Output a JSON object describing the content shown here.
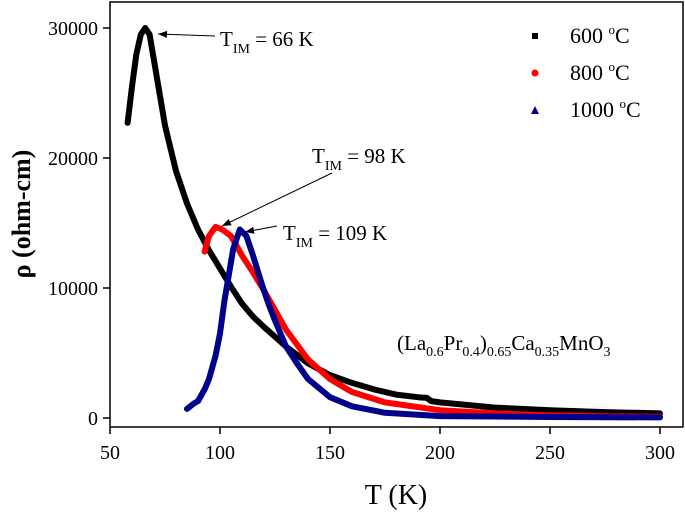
{
  "chart_data": {
    "type": "scatter",
    "title": "",
    "xlabel": "T (K)",
    "ylabel": "ρ (ohm-cm)",
    "xlim": [
      50,
      302
    ],
    "ylim": [
      -800,
      32500
    ],
    "xticks": [
      50,
      100,
      150,
      200,
      250,
      300
    ],
    "yticks": [
      0,
      10000,
      20000,
      30000
    ],
    "grid": false,
    "legend_position": "top-right",
    "compound_label": {
      "parts": [
        {
          "t": "(La",
          "sub": false
        },
        {
          "t": "0.6",
          "sub": true
        },
        {
          "t": "Pr",
          "sub": false
        },
        {
          "t": "0.4",
          "sub": true
        },
        {
          "t": ")",
          "sub": false
        },
        {
          "t": "0.65",
          "sub": true
        },
        {
          "t": "Ca",
          "sub": false
        },
        {
          "t": "0.35",
          "sub": true
        },
        {
          "t": "MnO",
          "sub": false
        },
        {
          "t": "3",
          "sub": true
        }
      ]
    },
    "annotations": [
      {
        "main": "T",
        "sub": "IM",
        "rest": " = 66 K",
        "x": 66,
        "y": 30000
      },
      {
        "main": "T",
        "sub": "IM",
        "rest": " = 98 K",
        "x": 98,
        "y": 14700
      },
      {
        "main": "T",
        "sub": "IM",
        "rest": " = 109 K",
        "x": 109,
        "y": 14500
      }
    ],
    "series": [
      {
        "name": "600 °C",
        "legend_main": "600 ",
        "legend_sup": "o",
        "legend_unit": "C",
        "color": "#000000",
        "marker": "square",
        "x": [
          58,
          60,
          62,
          64,
          66,
          68,
          70,
          75,
          80,
          85,
          90,
          95,
          100,
          105,
          110,
          115,
          120,
          130,
          140,
          150,
          160,
          170,
          180,
          190,
          194,
          196,
          200,
          225,
          250,
          275,
          300
        ],
        "y": [
          22700,
          25500,
          28000,
          29500,
          30000,
          29500,
          27500,
          22500,
          19000,
          16500,
          14500,
          12900,
          11500,
          10100,
          8800,
          7800,
          7000,
          5500,
          4200,
          3300,
          2700,
          2200,
          1800,
          1600,
          1550,
          1300,
          1200,
          800,
          600,
          450,
          350
        ]
      },
      {
        "name": "800 °C",
        "legend_main": "800 ",
        "legend_sup": "o",
        "legend_unit": "C",
        "color": "#ff0000",
        "marker": "circle",
        "x": [
          93,
          95,
          98,
          101,
          105,
          110,
          115,
          120,
          125,
          130,
          140,
          150,
          160,
          175,
          200,
          225,
          250,
          275,
          300
        ],
        "y": [
          12800,
          14000,
          14700,
          14500,
          14000,
          12500,
          11200,
          9800,
          8300,
          6800,
          4500,
          3000,
          2000,
          1200,
          600,
          350,
          200,
          130,
          100
        ]
      },
      {
        "name": "1000 °C",
        "legend_main": "1000 ",
        "legend_sup": "o",
        "legend_unit": "C",
        "color": "#00008b",
        "marker": "triangle",
        "x": [
          85,
          88,
          90,
          93,
          95,
          98,
          100,
          102,
          104,
          106,
          109,
          112,
          115,
          119,
          122,
          125,
          130,
          135,
          140,
          150,
          160,
          175,
          200,
          250,
          300
        ],
        "y": [
          700,
          1100,
          1300,
          2200,
          3000,
          4800,
          6500,
          9000,
          11000,
          13000,
          14500,
          14000,
          12500,
          10300,
          8800,
          7500,
          5500,
          4200,
          3000,
          1600,
          900,
          400,
          150,
          80,
          50
        ]
      }
    ]
  }
}
